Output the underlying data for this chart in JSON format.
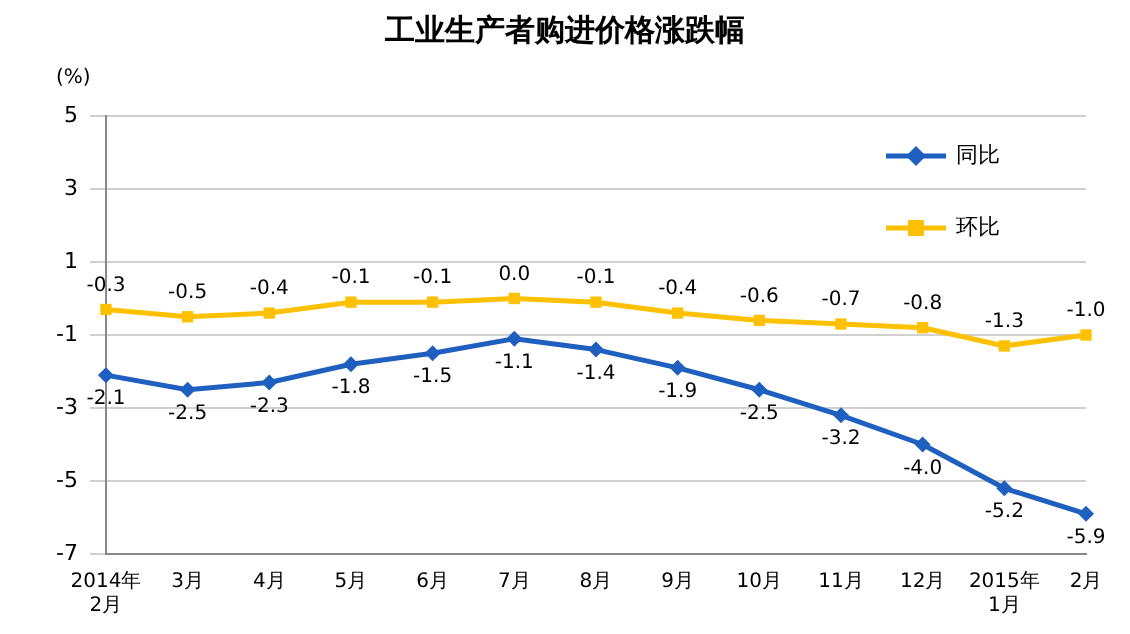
{
  "chart_data": {
    "type": "line",
    "title": "工业生产者购进价格涨跌幅",
    "ylabel": "(%)",
    "categories": [
      "2014年\n2月",
      "3月",
      "4月",
      "5月",
      "6月",
      "7月",
      "8月",
      "9月",
      "10月",
      "11月",
      "12月",
      "2015年\n1月",
      "2月"
    ],
    "series": [
      {
        "name": "同比",
        "color": "#1f5fbf",
        "marker": "diamond",
        "values": [
          -2.1,
          -2.5,
          -2.3,
          -1.8,
          -1.5,
          -1.1,
          -1.4,
          -1.9,
          -2.5,
          -3.2,
          -4.0,
          -5.2,
          -5.9
        ],
        "value_labels": [
          "-2.1",
          "-2.5",
          "-2.3",
          "-1.8",
          "-1.5",
          "-1.1",
          "-1.4",
          "-1.9",
          "-2.5",
          "-3.2",
          "-4.0",
          "-5.2",
          "-5.9"
        ]
      },
      {
        "name": "环比",
        "color": "#ffc000",
        "marker": "square",
        "values": [
          -0.3,
          -0.5,
          -0.4,
          -0.1,
          -0.1,
          0.0,
          -0.1,
          -0.4,
          -0.6,
          -0.7,
          -0.8,
          -1.3,
          -1.0
        ],
        "value_labels": [
          "-0.3",
          "-0.5",
          "-0.4",
          "-0.1",
          "-0.1",
          "0.0",
          "-0.1",
          "-0.4",
          "-0.6",
          "-0.7",
          "-0.8",
          "-1.3",
          "-1.0"
        ]
      }
    ],
    "ylim": [
      -7,
      5
    ],
    "yticks": [
      -7,
      -5,
      -3,
      -1,
      1,
      3,
      5
    ],
    "grid": "y",
    "legend": "top right"
  }
}
